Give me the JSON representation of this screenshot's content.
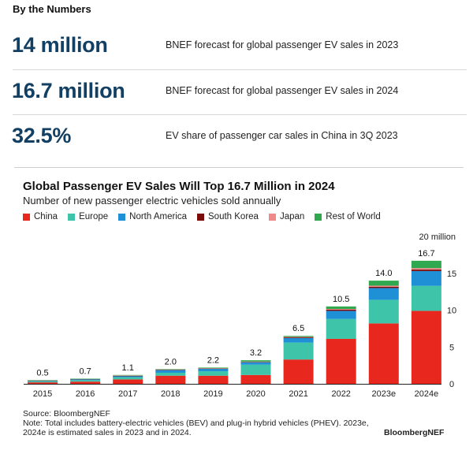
{
  "section": {
    "heading": "By the Numbers"
  },
  "stats": [
    {
      "value": "14 million",
      "desc": "BNEF forecast for global passenger EV sales in 2023"
    },
    {
      "value": "16.7 million",
      "desc": "BNEF forecast for global passenger EV sales in 2024"
    },
    {
      "value": "32.5%",
      "desc": "EV share of passenger car sales in China in 3Q 2023"
    }
  ],
  "chart_data": {
    "type": "bar",
    "stacked": true,
    "title": "Global Passenger EV Sales Will Top 16.7 Million in 2024",
    "subtitle": "Number of new passenger electric vehicles sold annually",
    "categories": [
      "2015",
      "2016",
      "2017",
      "2018",
      "2019",
      "2020",
      "2021",
      "2022",
      "2023e",
      "2024e"
    ],
    "totals_labels": [
      "0.5",
      "0.7",
      "1.1",
      "2.0",
      "2.2",
      "3.2",
      "6.5",
      "10.5",
      "14.0",
      "16.7"
    ],
    "series": [
      {
        "name": "China",
        "color": "#e8281f",
        "values": [
          0.2,
          0.3,
          0.6,
          1.1,
          1.1,
          1.2,
          3.3,
          6.1,
          8.2,
          9.9
        ]
      },
      {
        "name": "Europe",
        "color": "#3ec4a8",
        "values": [
          0.15,
          0.2,
          0.3,
          0.4,
          0.6,
          1.4,
          2.3,
          2.7,
          3.2,
          3.4
        ]
      },
      {
        "name": "North America",
        "color": "#1f8fd6",
        "values": [
          0.1,
          0.15,
          0.17,
          0.37,
          0.33,
          0.33,
          0.62,
          1.1,
          1.6,
          2.0
        ]
      },
      {
        "name": "South Korea",
        "color": "#7a0c0c",
        "values": [
          0.005,
          0.01,
          0.02,
          0.04,
          0.05,
          0.06,
          0.12,
          0.16,
          0.17,
          0.2
        ]
      },
      {
        "name": "Japan",
        "color": "#f08a8a",
        "values": [
          0.02,
          0.02,
          0.05,
          0.05,
          0.04,
          0.03,
          0.04,
          0.1,
          0.15,
          0.2
        ]
      },
      {
        "name": "Rest of World",
        "color": "#2fa84f",
        "values": [
          0.025,
          0.02,
          0.06,
          0.04,
          0.08,
          0.18,
          0.12,
          0.34,
          0.68,
          1.0
        ]
      }
    ],
    "y_unit_label": "20 million",
    "y_ticks": [
      0,
      5,
      10,
      15
    ],
    "ylim": [
      0,
      20
    ],
    "axis_side": "right",
    "grid": false
  },
  "footer": {
    "source": "Source: BloombergNEF",
    "note": "Note: Total includes battery-electric vehicles (BEV) and plug-in hybrid vehicles (PHEV). 2023e, 2024e is estimated sales in 2023 and in 2024.",
    "logo": "BloombergNEF"
  }
}
